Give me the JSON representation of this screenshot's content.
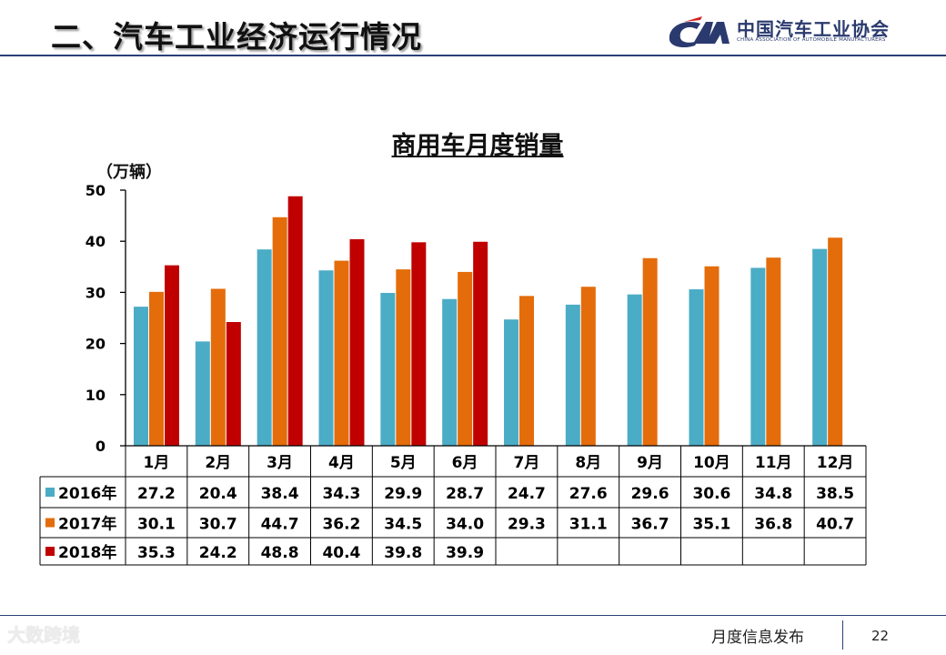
{
  "slide": {
    "title": "二、汽车工业经济运行情况",
    "logo_cn": "中国汽车工业协会",
    "logo_en": "CHINA ASSOCIATION OF AUTOMOBILE MANUFACTURERS",
    "footer_label": "月度信息发布",
    "page_number": "22",
    "watermark": "大数跨境"
  },
  "chart_data": {
    "type": "bar",
    "title": "商用车月度销量",
    "ylabel": "（万辆）",
    "xlabel": "",
    "ylim": [
      0,
      50
    ],
    "yticks": [
      0,
      10,
      20,
      30,
      40,
      50
    ],
    "grid": false,
    "legend": "table-left",
    "categories": [
      "1月",
      "2月",
      "3月",
      "4月",
      "5月",
      "6月",
      "7月",
      "8月",
      "9月",
      "10月",
      "11月",
      "12月"
    ],
    "series": [
      {
        "name": "2016年",
        "color": "#4bacc6",
        "values": [
          27.2,
          20.4,
          38.4,
          34.3,
          29.9,
          28.7,
          24.7,
          27.6,
          29.6,
          30.6,
          34.8,
          38.5
        ]
      },
      {
        "name": "2017年",
        "color": "#e46c0a",
        "values": [
          30.1,
          30.7,
          44.7,
          36.2,
          34.5,
          34.0,
          29.3,
          31.1,
          36.7,
          35.1,
          36.8,
          40.7
        ]
      },
      {
        "name": "2018年",
        "color": "#c00000",
        "values": [
          35.3,
          24.2,
          48.8,
          40.4,
          39.8,
          39.9,
          null,
          null,
          null,
          null,
          null,
          null
        ]
      }
    ]
  }
}
